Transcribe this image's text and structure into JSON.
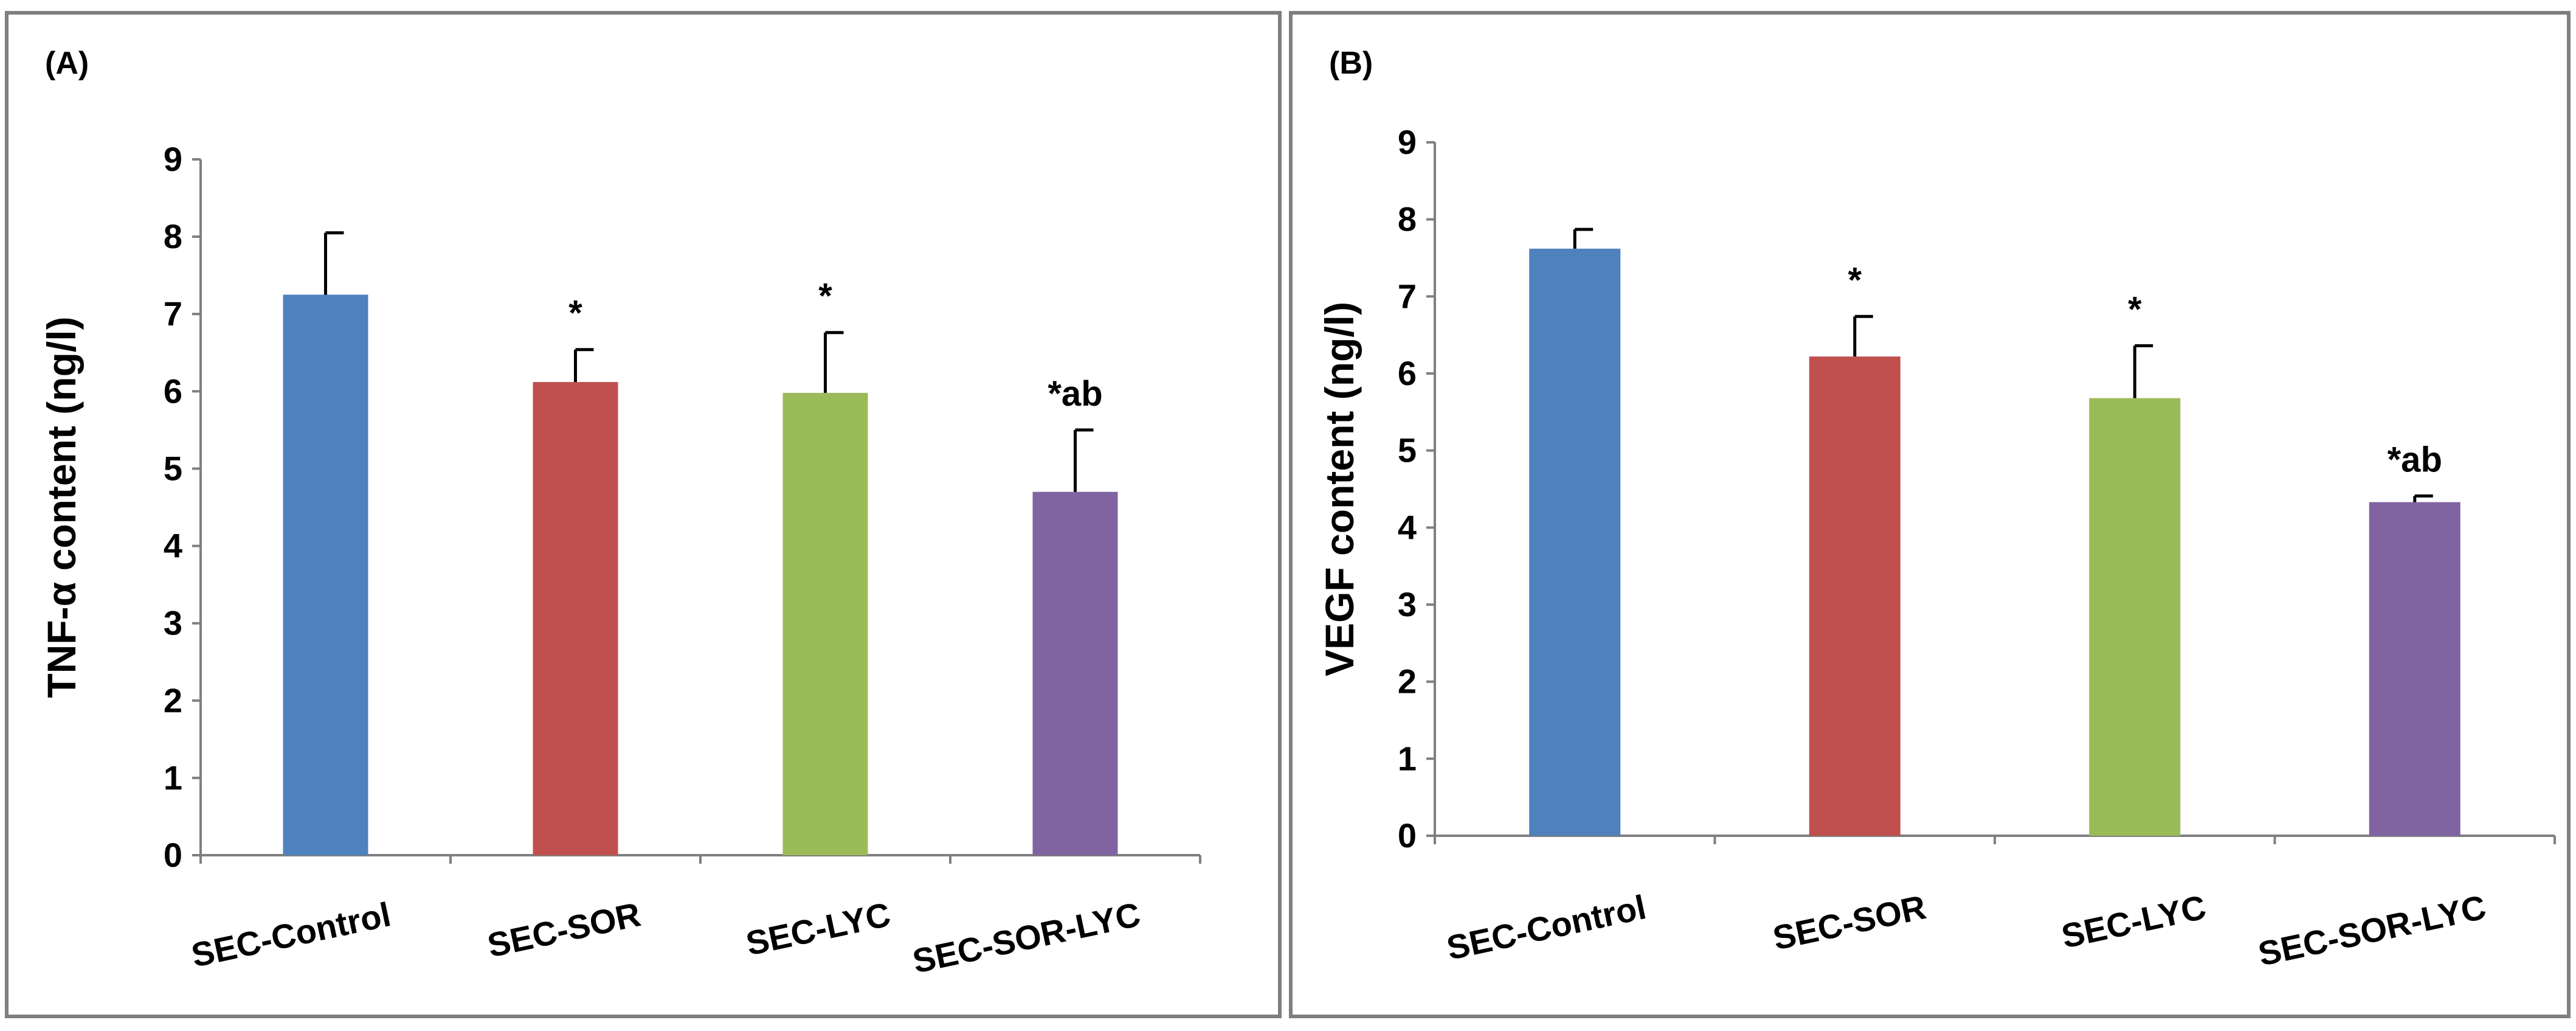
{
  "chart_data": [
    {
      "type": "bar",
      "panel_label": "(A)",
      "title": "",
      "xlabel": "",
      "ylabel": "TNF-α content (ng/l)",
      "ylim": [
        0,
        9
      ],
      "yticks": [
        "0",
        "1",
        "2",
        "3",
        "4",
        "5",
        "6",
        "7",
        "8",
        "9"
      ],
      "categories": [
        "SEC-Control",
        "SEC-SOR",
        "SEC-LYC",
        "SEC-SOR-LYC"
      ],
      "values": [
        7.25,
        6.12,
        5.98,
        4.7
      ],
      "errors": [
        0.8,
        0.42,
        0.78,
        0.8
      ],
      "annotations": [
        "",
        "*",
        "*",
        "*ab"
      ],
      "colors": [
        "#4f81bd",
        "#c0504d",
        "#9bbb59",
        "#8064a2"
      ],
      "grid": false,
      "legend": "none"
    },
    {
      "type": "bar",
      "panel_label": "(B)",
      "title": "",
      "xlabel": "",
      "ylabel": "VEGF content (ng/l)",
      "ylim": [
        0,
        9
      ],
      "yticks": [
        "0",
        "1",
        "2",
        "3",
        "4",
        "5",
        "6",
        "7",
        "8",
        "9"
      ],
      "categories": [
        "SEC-Control",
        "SEC-SOR",
        "SEC-LYC",
        "SEC-SOR-LYC"
      ],
      "values": [
        7.62,
        6.22,
        5.68,
        4.33
      ],
      "errors": [
        0.25,
        0.52,
        0.68,
        0.08
      ],
      "annotations": [
        "",
        "*",
        "*",
        "*ab"
      ],
      "colors": [
        "#4f81bd",
        "#c0504d",
        "#9bbb59",
        "#8064a2"
      ],
      "grid": false,
      "legend": "none"
    }
  ]
}
